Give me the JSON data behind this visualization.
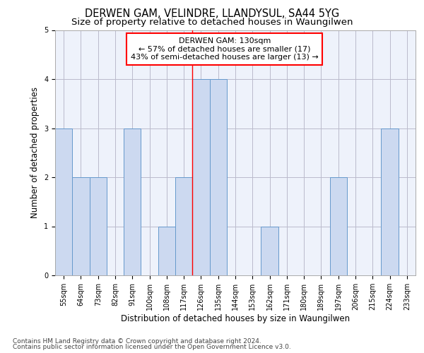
{
  "title": "DERWEN GAM, VELINDRE, LLANDYSUL, SA44 5YG",
  "subtitle": "Size of property relative to detached houses in Waungilwen",
  "xlabel": "Distribution of detached houses by size in Waungilwen",
  "ylabel": "Number of detached properties",
  "categories": [
    "55sqm",
    "64sqm",
    "73sqm",
    "82sqm",
    "91sqm",
    "100sqm",
    "108sqm",
    "117sqm",
    "126sqm",
    "135sqm",
    "144sqm",
    "153sqm",
    "162sqm",
    "171sqm",
    "180sqm",
    "189sqm",
    "197sqm",
    "206sqm",
    "215sqm",
    "224sqm",
    "233sqm"
  ],
  "values": [
    3,
    2,
    2,
    0,
    3,
    0,
    1,
    2,
    4,
    4,
    0,
    0,
    1,
    0,
    0,
    0,
    2,
    0,
    0,
    3,
    0
  ],
  "bar_color": "#ccd9f0",
  "bar_edge_color": "#6699cc",
  "subject_line_color": "red",
  "annotation_title": "DERWEN GAM: 130sqm",
  "annotation_line1": "← 57% of detached houses are smaller (17)",
  "annotation_line2": "43% of semi-detached houses are larger (13) →",
  "annotation_box_color": "white",
  "annotation_box_edge": "red",
  "ylim": [
    0,
    5
  ],
  "yticks": [
    0,
    1,
    2,
    3,
    4,
    5
  ],
  "footnote1": "Contains HM Land Registry data © Crown copyright and database right 2024.",
  "footnote2": "Contains public sector information licensed under the Open Government Licence v3.0.",
  "background_color": "white",
  "plot_bg_color": "#eef2fb",
  "grid_color": "#bbbbcc",
  "title_fontsize": 10.5,
  "subtitle_fontsize": 9.5,
  "axis_label_fontsize": 8.5,
  "tick_fontsize": 7,
  "annotation_fontsize": 8,
  "footnote_fontsize": 6.5
}
